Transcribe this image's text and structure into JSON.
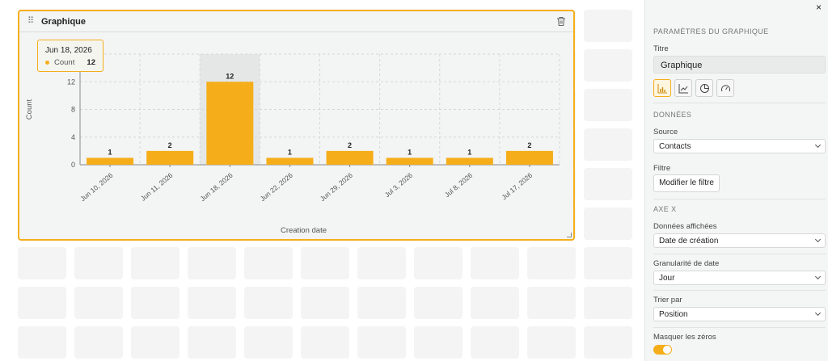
{
  "widget": {
    "title": "Graphique"
  },
  "tooltip": {
    "date": "Jun 18, 2026",
    "label": "Count",
    "value": "12"
  },
  "chart_data": {
    "type": "bar",
    "categories": [
      "Jun 10, 2026",
      "Jun 11, 2026",
      "Jun 18, 2026",
      "Jun 22, 2026",
      "Jun 29, 2026",
      "Jul 3, 2026",
      "Jul 8, 2026",
      "Jul 17, 2026"
    ],
    "values": [
      1,
      2,
      12,
      1,
      2,
      1,
      1,
      2
    ],
    "data_labels": [
      "1",
      "2",
      "12",
      "1",
      "2",
      "1",
      "1",
      "2"
    ],
    "xlabel": "Creation date",
    "ylabel": "Count",
    "ylim": [
      0,
      16
    ],
    "y_ticks": [
      "0",
      "4",
      "8",
      "12"
    ],
    "highlighted_index": 2,
    "grid": true,
    "bar_color": "#f5ae1a"
  },
  "panel": {
    "close": "×",
    "section_graph": "PARAMÈTRES DU GRAPHIQUE",
    "title_label": "Titre",
    "title_value": "Graphique",
    "section_data": "DONNÉES",
    "source_label": "Source",
    "source_value": "Contacts",
    "filter_label": "Filtre",
    "filter_button": "Modifier le filtre",
    "section_axis": "AXE X",
    "data_shown_label": "Données affichées",
    "data_shown_value": "Date de création",
    "granularity_label": "Granularité de date",
    "granularity_value": "Jour",
    "sort_label": "Trier par",
    "sort_value": "Position",
    "hide_zeros_label": "Masquer les zéros",
    "hide_zeros_on": true,
    "chart_types": [
      "bar-chart-icon",
      "line-chart-icon",
      "pie-chart-icon",
      "gauge-icon"
    ]
  },
  "colors": {
    "accent": "#f5ae1a"
  }
}
